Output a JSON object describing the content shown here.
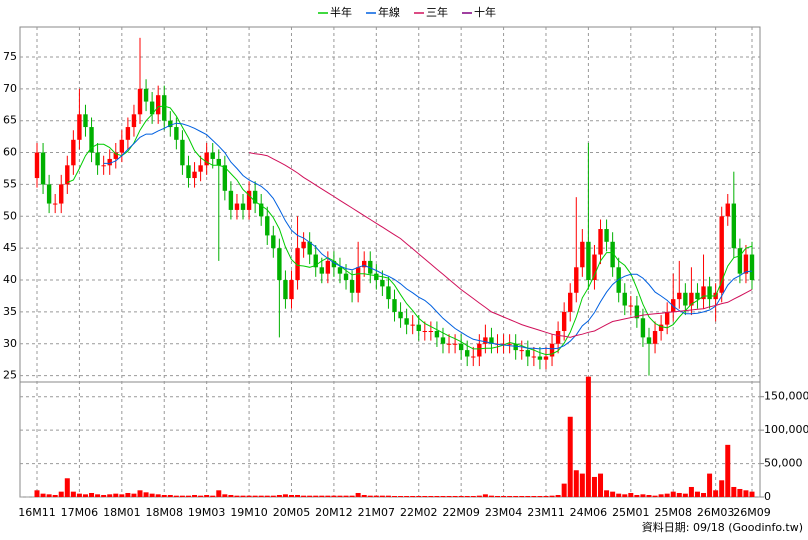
{
  "chart_data": {
    "type": "candlestick",
    "categories": [
      "16M11",
      null,
      null,
      null,
      null,
      null,
      null,
      "17M06",
      null,
      null,
      null,
      null,
      null,
      null,
      "18M01",
      null,
      null,
      null,
      null,
      null,
      null,
      "18M08",
      null,
      null,
      null,
      null,
      null,
      null,
      "19M03",
      null,
      null,
      null,
      null,
      null,
      null,
      "19M10",
      null,
      null,
      null,
      null,
      null,
      null,
      "20M05",
      null,
      null,
      null,
      null,
      null,
      null,
      "20M12",
      null,
      null,
      null,
      null,
      null,
      null,
      "21M07",
      null,
      null,
      null,
      null,
      null,
      null,
      "22M02",
      null,
      null,
      null,
      null,
      null,
      null,
      "22M09",
      null,
      null,
      null,
      null,
      null,
      null,
      "23M04",
      null,
      null,
      null,
      null,
      null,
      null,
      "23M11",
      null,
      null,
      null,
      null,
      null,
      null,
      "24M06",
      null,
      null,
      null,
      null,
      null,
      null,
      "25M01",
      null,
      null,
      null,
      null,
      null,
      null,
      "25M08",
      null,
      null,
      null,
      null,
      null,
      null,
      "26M03",
      null,
      null,
      null,
      null,
      null,
      "26M09"
    ],
    "open": [
      56,
      60,
      55,
      52,
      52,
      55,
      58,
      62,
      66,
      64,
      60,
      58,
      58,
      59,
      60,
      62,
      64,
      66,
      70,
      68,
      66,
      69,
      65,
      64,
      62,
      58,
      56,
      57,
      58,
      60,
      59,
      58,
      54,
      51,
      52,
      51,
      54,
      52,
      50,
      47,
      45,
      40,
      37,
      40,
      45,
      46,
      44,
      42,
      41,
      43,
      42,
      41,
      40,
      38,
      42,
      43,
      41,
      40,
      39,
      37,
      35,
      34,
      33,
      33,
      32,
      32,
      32,
      31,
      30,
      30,
      30,
      29,
      28,
      28,
      30,
      31,
      30,
      30,
      30,
      30,
      29,
      29,
      28,
      28,
      27.5,
      28,
      30,
      32,
      35,
      38,
      42,
      46,
      40,
      44,
      48,
      46,
      42,
      38,
      36,
      36,
      34,
      31,
      30,
      32,
      33,
      35,
      37,
      38,
      36,
      38,
      37,
      39,
      37,
      38,
      50,
      52,
      45,
      41,
      44
    ],
    "high": [
      61.5,
      61.5,
      56.5,
      53.5,
      56.5,
      59.5,
      63.5,
      70,
      67.5,
      65.5,
      61.5,
      59.5,
      60.5,
      61.5,
      63.5,
      65.5,
      67.5,
      78,
      71.5,
      69.5,
      70.5,
      70.5,
      66.5,
      65.5,
      63.5,
      59.5,
      58.5,
      59.5,
      61.5,
      61.5,
      60.5,
      59.5,
      55.5,
      53.5,
      53.5,
      55.5,
      55.5,
      53.5,
      51.5,
      48.5,
      46.5,
      41.5,
      41.5,
      50,
      47.5,
      47.5,
      45.5,
      43.5,
      44.5,
      44.5,
      43.5,
      42.5,
      41.5,
      46,
      44.5,
      44.5,
      42.5,
      41.5,
      40.5,
      38.5,
      36.5,
      35.5,
      34.5,
      34.5,
      33.5,
      33.5,
      33.5,
      32.5,
      31.5,
      31.5,
      31.5,
      30.5,
      29.5,
      31.5,
      33,
      32.5,
      31.5,
      31.5,
      31.5,
      31.5,
      30.5,
      30.5,
      29.5,
      29.5,
      29.5,
      31.5,
      33.5,
      36.5,
      39.5,
      53,
      48,
      61.5,
      45.5,
      49.5,
      49.5,
      47.5,
      43.5,
      39.5,
      37.5,
      37.5,
      35.5,
      32.5,
      33.5,
      34.5,
      36.5,
      41,
      43,
      39.5,
      42,
      39.5,
      44,
      40.5,
      39.5,
      51.5,
      53.5,
      57,
      46.5,
      45.5,
      46
    ],
    "low": [
      54.5,
      53.5,
      50.5,
      50.5,
      50.5,
      53.5,
      56.5,
      60.5,
      62.5,
      58.5,
      56.5,
      56.5,
      56.5,
      57.5,
      58.5,
      60.5,
      62.5,
      64.5,
      66.5,
      64.5,
      64.5,
      63.5,
      62.5,
      60.5,
      56.5,
      54.5,
      54.5,
      55.5,
      56.5,
      57.5,
      43,
      52.5,
      49.5,
      49.5,
      49.5,
      49.5,
      50.5,
      48.5,
      45.5,
      43.5,
      31,
      35.5,
      35.5,
      38.5,
      43.5,
      42.5,
      40.5,
      39.5,
      39.5,
      40.5,
      39.5,
      38.5,
      36.5,
      36.5,
      40.5,
      39.5,
      38.5,
      37.5,
      35.5,
      33.5,
      32.5,
      31.5,
      31.5,
      30.5,
      30.5,
      30.5,
      29.5,
      28.5,
      28.5,
      28.5,
      27.5,
      26.5,
      26.5,
      26.5,
      28.5,
      28.5,
      28.5,
      28.5,
      28.5,
      27.5,
      27.5,
      26.5,
      26.5,
      26,
      26,
      26.5,
      28.5,
      30.5,
      33.5,
      36.5,
      40.5,
      38.5,
      38.5,
      42.5,
      44.5,
      40.5,
      36.5,
      34.5,
      34.5,
      32.5,
      29.5,
      25,
      28.5,
      30.5,
      31.5,
      33.5,
      35.5,
      34.5,
      34.5,
      35.5,
      35.5,
      35.5,
      33.5,
      36.5,
      48.5,
      43.5,
      39.5,
      39.5,
      38.5
    ],
    "close": [
      60,
      55,
      52,
      52,
      55,
      58,
      62,
      66,
      64,
      60,
      58,
      58,
      59,
      60,
      62,
      64,
      66,
      70,
      68,
      66,
      69,
      65,
      64,
      62,
      58,
      56,
      57,
      58,
      60,
      59,
      58,
      54,
      51,
      52,
      51,
      54,
      52,
      50,
      47,
      45,
      40,
      37,
      40,
      45,
      46,
      44,
      42,
      41,
      43,
      42,
      41,
      40,
      38,
      42,
      43,
      41,
      40,
      39,
      37,
      35,
      34,
      33,
      33,
      32,
      32,
      32,
      31,
      30,
      30,
      30,
      29,
      28,
      28,
      30,
      31,
      30,
      30,
      30,
      30,
      29,
      29,
      28,
      28,
      27.5,
      28,
      30,
      32,
      35,
      38,
      42,
      46,
      40,
      44,
      48,
      46,
      42,
      38,
      36,
      36,
      34,
      31,
      30,
      32,
      33,
      35,
      37,
      38,
      36,
      38,
      37,
      39,
      37,
      38,
      50,
      52,
      45,
      41,
      44,
      40
    ],
    "up_color": "#ff0000",
    "down_color": "#00b000",
    "ylim": [
      24,
      79.7
    ],
    "yticks": [
      25,
      30,
      35,
      40,
      45,
      50,
      55,
      60,
      65,
      70,
      75
    ],
    "grid": true,
    "legend": "top",
    "lines": [
      {
        "name": "半年",
        "color": "#00cc00",
        "values": [
          null,
          null,
          null,
          null,
          null,
          55.3,
          55.7,
          57.5,
          59.5,
          60.8,
          61.3,
          61.3,
          60.8,
          59.8,
          59.5,
          60.2,
          61.5,
          63.5,
          65,
          66,
          67.2,
          67.3,
          67,
          65.7,
          64,
          62.3,
          60.3,
          59.2,
          58.5,
          58,
          58,
          57.7,
          56.7,
          55.7,
          54.2,
          53.3,
          52.3,
          51.7,
          51,
          49.8,
          48,
          45.2,
          43.2,
          42.3,
          42.2,
          42,
          42.3,
          43,
          43.5,
          43,
          42.2,
          41.5,
          40.8,
          41,
          41,
          40.8,
          40.7,
          40.5,
          40.3,
          39.2,
          37.7,
          36.3,
          35.2,
          34,
          33.2,
          32.7,
          32.2,
          31.7,
          31.2,
          30.8,
          30.3,
          29.7,
          29.2,
          29.2,
          29.3,
          29.3,
          29.5,
          29.8,
          30.2,
          30,
          29.7,
          29.3,
          29,
          28.6,
          28.3,
          28.4,
          28.9,
          30.1,
          31.8,
          34.2,
          37.2,
          38.8,
          40.8,
          43,
          44.3,
          44.3,
          43,
          42.3,
          41,
          38.7,
          36.2,
          34.2,
          33.2,
          32.7,
          32.5,
          33,
          34.2,
          35.2,
          36.2,
          36.8,
          37.5,
          37.5,
          37.5,
          39.8,
          42.2,
          43.5,
          43.8,
          45,
          45.3
        ]
      },
      {
        "name": "年線",
        "color": "#0060e0",
        "values": [
          null,
          null,
          null,
          null,
          null,
          null,
          null,
          null,
          null,
          null,
          null,
          58.3,
          58.3,
          58.7,
          59.5,
          60.5,
          61.4,
          62.4,
          62.9,
          62.9,
          63.4,
          63.8,
          64.3,
          64.6,
          64.5,
          64.2,
          63.8,
          63.3,
          62.8,
          61.9,
          61,
          60,
          58.5,
          57.5,
          56.4,
          55.7,
          55.2,
          54.7,
          53.9,
          52.8,
          51.1,
          49.3,
          47.8,
          47,
          46.6,
          45.9,
          45.2,
          44.1,
          43.4,
          42.7,
          42.2,
          41.8,
          41.6,
          42,
          42.3,
          41.9,
          41.5,
          41,
          40.6,
          40.1,
          39.4,
          38.6,
          38,
          37.3,
          36.8,
          36,
          35,
          34,
          33.2,
          32.4,
          31.8,
          31.2,
          30.7,
          30.5,
          30.3,
          30.1,
          29.9,
          29.8,
          29.7,
          29.6,
          29.5,
          29.3,
          29.3,
          29.2,
          29.3,
          29.2,
          29.3,
          29.7,
          30.4,
          31.4,
          32.8,
          33.6,
          34.9,
          36.6,
          38.1,
          39.3,
          40.1,
          40.6,
          40.9,
          40.9,
          40.3,
          39.3,
          38.1,
          37.5,
          36.8,
          35.9,
          35.2,
          34.7,
          34.7,
          34.8,
          35,
          35.3,
          35.9,
          37.5,
          39.2,
          40.2,
          40.7,
          41.3,
          41.4
        ]
      },
      {
        "name": "三年",
        "color": "#d0105a",
        "values": [
          null,
          null,
          null,
          null,
          null,
          null,
          null,
          null,
          null,
          null,
          null,
          null,
          null,
          null,
          null,
          null,
          null,
          null,
          null,
          null,
          null,
          null,
          null,
          null,
          null,
          null,
          null,
          null,
          null,
          null,
          null,
          null,
          null,
          null,
          null,
          60,
          59.8,
          59.7,
          59.5,
          59,
          58.5,
          58,
          57.4,
          56.8,
          56.1,
          55.5,
          54.9,
          54.3,
          53.7,
          53.1,
          52.5,
          51.9,
          51.3,
          50.7,
          50.1,
          49.5,
          48.9,
          48.3,
          47.7,
          47.1,
          46.5,
          45.7,
          44.9,
          44.1,
          43.3,
          42.5,
          41.7,
          40.9,
          40.1,
          39.3,
          38.5,
          37.8,
          37.1,
          36.4,
          35.7,
          35,
          34.6,
          34.2,
          33.8,
          33.4,
          33,
          32.7,
          32.4,
          32.1,
          31.8,
          31.5,
          31.3,
          31.2,
          31,
          31.3,
          31.5,
          31.8,
          32,
          32.5,
          33,
          33.5,
          33.7,
          33.9,
          34.1,
          34.3,
          34.5,
          34.6,
          34.7,
          34.8,
          34.9,
          35,
          35.1,
          35.2,
          35.3,
          35.4,
          35.5,
          35.8,
          36,
          36.3,
          36.5,
          37,
          37.5,
          38,
          38.5
        ]
      },
      {
        "name": "十年",
        "color": "#800080",
        "values": [
          null,
          null,
          null,
          null,
          null,
          null,
          null,
          null,
          null,
          null,
          null,
          null,
          null,
          null,
          null,
          null,
          null,
          null,
          null,
          null,
          null,
          null,
          null,
          null,
          null,
          null,
          null,
          null,
          null,
          null,
          null,
          null,
          null,
          null,
          null,
          null,
          null,
          null,
          null,
          null,
          null,
          null,
          null,
          null,
          null,
          null,
          null,
          null,
          null,
          null,
          null,
          null,
          null,
          null,
          null,
          null,
          null,
          null,
          null,
          null,
          null,
          null,
          null,
          null,
          null,
          null,
          null,
          null,
          null,
          null,
          null,
          null,
          null,
          null,
          null,
          null,
          null,
          null,
          null,
          null,
          null,
          null,
          null,
          null,
          null,
          null,
          null,
          null,
          null,
          null,
          null,
          null,
          null,
          null,
          null,
          null,
          null,
          null,
          null,
          null,
          null,
          null,
          null,
          null,
          null,
          null,
          null,
          null,
          null,
          null,
          null,
          null,
          null,
          null,
          null,
          null,
          null,
          null,
          null
        ]
      }
    ],
    "volume": {
      "color": "#ff0000",
      "values": [
        10000,
        5000,
        4000,
        3000,
        8000,
        28000,
        8000,
        5000,
        4000,
        6000,
        4000,
        3000,
        4000,
        5000,
        4000,
        6000,
        5000,
        10000,
        7000,
        5000,
        4000,
        3000,
        3000,
        2000,
        2000,
        2000,
        3000,
        2000,
        3000,
        2000,
        10000,
        4000,
        3000,
        2000,
        2000,
        2000,
        2000,
        2000,
        2000,
        2000,
        3000,
        4000,
        3000,
        3000,
        2000,
        2000,
        2000,
        2000,
        2000,
        2000,
        2000,
        2000,
        2000,
        6000,
        3000,
        2000,
        2000,
        2000,
        2000,
        1500,
        1500,
        1500,
        1500,
        1500,
        1500,
        1500,
        1500,
        1500,
        1500,
        1500,
        1500,
        1500,
        1500,
        2000,
        4000,
        2000,
        1500,
        1500,
        1500,
        1500,
        1500,
        1500,
        1500,
        1500,
        1500,
        2000,
        3000,
        20000,
        120000,
        40000,
        35000,
        180000,
        30000,
        35000,
        10000,
        8000,
        5000,
        4000,
        6000,
        3000,
        4000,
        3000,
        2000,
        4000,
        5000,
        8000,
        6000,
        5000,
        15000,
        8000,
        6000,
        35000,
        10000,
        25000,
        78000,
        15000,
        12000,
        10000,
        8000
      ],
      "ylim": [
        0,
        172000
      ],
      "yticks": [
        0,
        {
          "value": 50000,
          "label": "50,000"
        },
        {
          "value": 100000,
          "label": "100,000"
        },
        {
          "value": 150000,
          "label": "150,000"
        }
      ]
    },
    "note": "資料日期: 09/18 (Goodinfo.tw)"
  }
}
